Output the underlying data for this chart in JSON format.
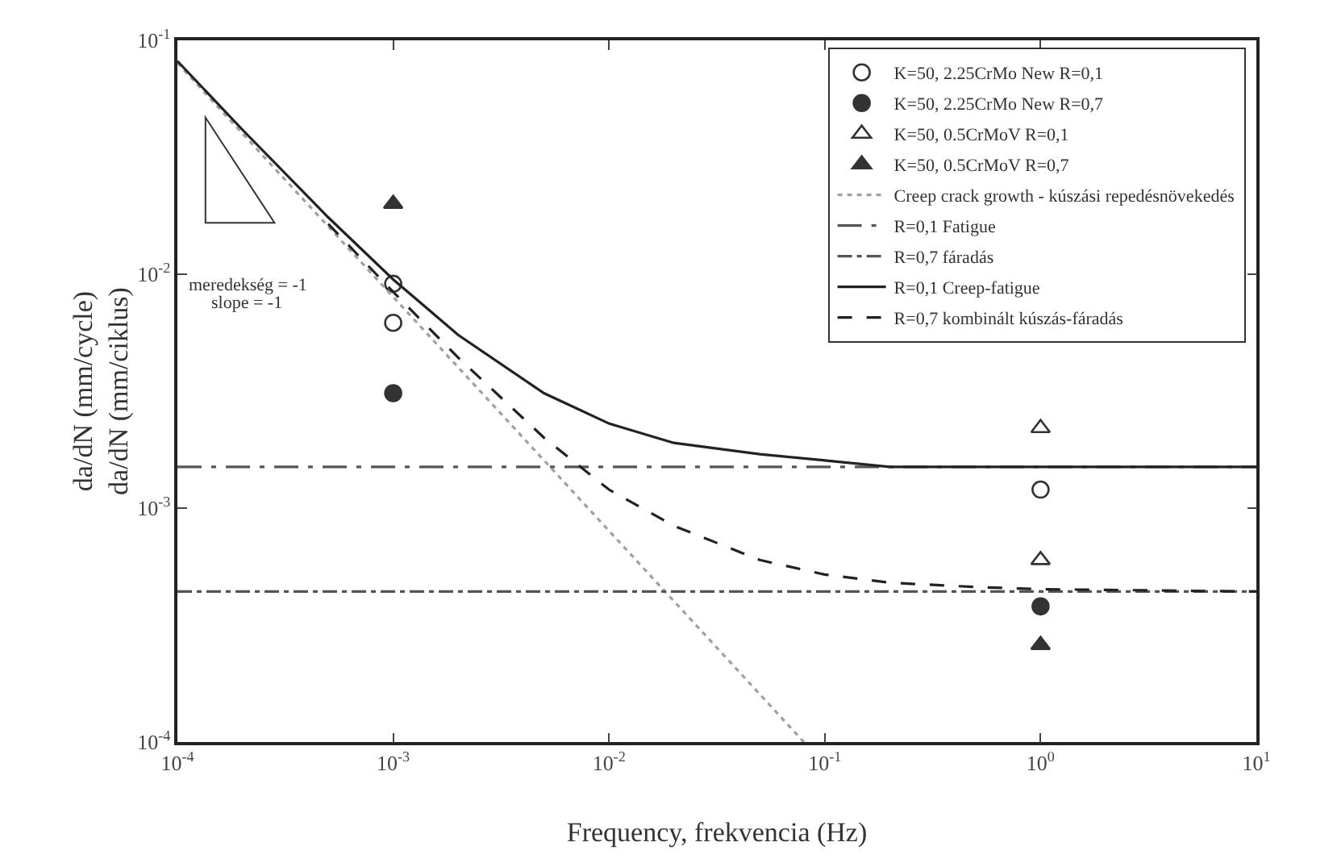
{
  "chart_data": {
    "type": "line",
    "xlabel": "Frequency, frekvencia (Hz)",
    "ylabel": "da/dN (mm/cycle)\nda/dN (mm/ciklus)",
    "log": "xy",
    "grid": false,
    "legend": "top right",
    "xlim": [
      0.0001,
      10
    ],
    "ylim": [
      0.0001,
      0.1
    ],
    "xticks": [
      {
        "value": 0.0001,
        "label": "10$^{-4}$"
      },
      {
        "value": 0.001,
        "label": "10$^{-3}$"
      },
      {
        "value": 0.01,
        "label": "10$^{-2}$"
      },
      {
        "value": 0.1,
        "label": "10$^{-1}$"
      },
      {
        "value": 1,
        "label": "10$^{0}$"
      },
      {
        "value": 10,
        "label": "10$^{1}$"
      }
    ],
    "yticks": [
      {
        "value": 0.0001,
        "label": "10$^{-4}$"
      },
      {
        "value": 0.001,
        "label": "10$^{-3}$"
      },
      {
        "value": 0.01,
        "label": "10$^{-2}$"
      },
      {
        "value": 0.1,
        "label": "10$^{-1}$"
      }
    ],
    "annotations": [
      "meredekség = -1",
      "slope = -1"
    ],
    "series": [
      {
        "name": "K=50, 2.25CrMo New R=0,1",
        "type": "scatter",
        "marker": "circle-open",
        "color": "#333333",
        "x": [
          0.001,
          0.001,
          1
        ],
        "values": [
          0.0091,
          0.0062,
          0.0012
        ]
      },
      {
        "name": "K=50, 2.25CrMo New R=0,7",
        "type": "scatter",
        "marker": "circle",
        "color": "#333333",
        "x": [
          0.001,
          1
        ],
        "values": [
          0.0031,
          0.00038
        ]
      },
      {
        "name": "K=50, 0.5CrMoV R=0,1",
        "type": "scatter",
        "marker": "triangle-open",
        "color": "#333333",
        "x": [
          1,
          1
        ],
        "values": [
          0.0022,
          0.0006
        ]
      },
      {
        "name": "K=50, 0.5CrMoV R=0,7",
        "type": "scatter",
        "marker": "triangle",
        "color": "#333333",
        "x": [
          0.001,
          1
        ],
        "values": [
          0.02,
          0.00026
        ]
      },
      {
        "name": "Creep crack growth - kúszási repedésnövekedés",
        "line_style": "dotted",
        "color": "#a0a0a0",
        "x": [
          0.0001,
          0.0002,
          0.0005,
          0.001,
          0.002,
          0.005,
          0.01,
          0.02,
          0.05,
          0.08
        ],
        "values": [
          0.08,
          0.04,
          0.016,
          0.008,
          0.004,
          0.0016,
          0.0008,
          0.0004,
          0.00016,
          0.0001
        ]
      },
      {
        "name": "R=0,1 Fatigue",
        "line_style": "longdashdot",
        "color": "#555555",
        "x": [
          0.0001,
          10
        ],
        "values": [
          0.0015,
          0.0015
        ]
      },
      {
        "name": "R=0,7 fáradás",
        "line_style": "dashdot",
        "color": "#555555",
        "x": [
          0.0001,
          10
        ],
        "values": [
          0.00044,
          0.00044
        ]
      },
      {
        "name": "R=0,1 Creep-fatigue",
        "line_style": "solid",
        "color": "#222222",
        "x": [
          0.0001,
          0.0002,
          0.0005,
          0.001,
          0.002,
          0.005,
          0.01,
          0.02,
          0.05,
          0.1,
          0.2,
          0.5,
          1,
          10
        ],
        "values": [
          0.0815,
          0.0415,
          0.0175,
          0.0095,
          0.0055,
          0.0031,
          0.0023,
          0.0019,
          0.0017,
          0.0016,
          0.0015,
          0.0015,
          0.0015,
          0.0015
        ]
      },
      {
        "name": "R=0,7 kombinált kúszás-fáradás",
        "line_style": "dashed",
        "color": "#222222",
        "x": [
          0.0005,
          0.001,
          0.002,
          0.005,
          0.01,
          0.02,
          0.05,
          0.1,
          0.2,
          0.5,
          1,
          10
        ],
        "values": [
          0.0164,
          0.0084,
          0.0044,
          0.002,
          0.0012,
          0.00084,
          0.0006,
          0.00052,
          0.00048,
          0.00046,
          0.00045,
          0.00044
        ]
      }
    ]
  }
}
